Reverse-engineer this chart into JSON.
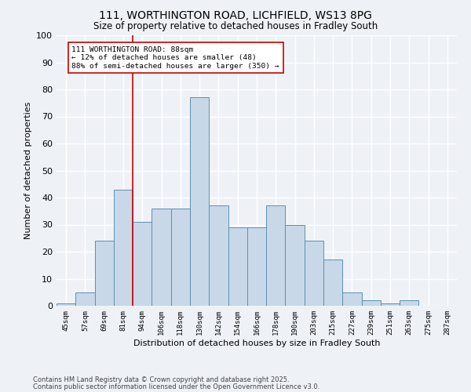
{
  "title1": "111, WORTHINGTON ROAD, LICHFIELD, WS13 8PG",
  "title2": "Size of property relative to detached houses in Fradley South",
  "xlabel": "Distribution of detached houses by size in Fradley South",
  "ylabel": "Number of detached properties",
  "bin_labels": [
    "45sqm",
    "57sqm",
    "69sqm",
    "81sqm",
    "94sqm",
    "106sqm",
    "118sqm",
    "130sqm",
    "142sqm",
    "154sqm",
    "166sqm",
    "178sqm",
    "190sqm",
    "203sqm",
    "215sqm",
    "227sqm",
    "239sqm",
    "251sqm",
    "263sqm",
    "275sqm",
    "287sqm"
  ],
  "bar_heights": [
    1,
    5,
    24,
    43,
    31,
    36,
    36,
    77,
    37,
    29,
    29,
    37,
    30,
    24,
    17,
    5,
    2,
    1,
    2,
    0,
    0
  ],
  "bar_color": "#c8d8e8",
  "bar_edge_color": "#5b90b0",
  "vline_color": "#cc0000",
  "vline_x": 3.5,
  "annotation_text": "111 WORTHINGTON ROAD: 88sqm\n← 12% of detached houses are smaller (48)\n88% of semi-detached houses are larger (350) →",
  "annotation_box_color": "#ffffff",
  "annotation_box_edge": "#cc0000",
  "ylim": [
    0,
    100
  ],
  "yticks": [
    0,
    10,
    20,
    30,
    40,
    50,
    60,
    70,
    80,
    90,
    100
  ],
  "bg_color": "#eef2f7",
  "grid_color": "#ffffff",
  "footer1": "Contains HM Land Registry data © Crown copyright and database right 2025.",
  "footer2": "Contains public sector information licensed under the Open Government Licence v3.0."
}
